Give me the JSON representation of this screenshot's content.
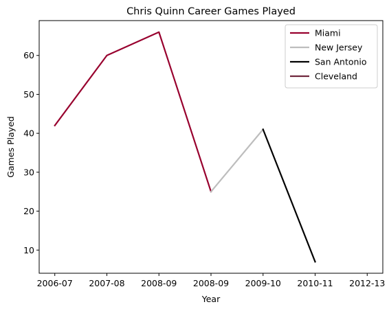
{
  "chart_data": {
    "type": "line",
    "title": "Chris Quinn Career Games Played",
    "xlabel": "Year",
    "ylabel": "Games Played",
    "categories": [
      "2006-07",
      "2007-08",
      "2008-09",
      "2008-09",
      "2009-10",
      "2010-11",
      "2012-13"
    ],
    "ylim": [
      4.05,
      68.95
    ],
    "yticks": [
      10,
      20,
      30,
      40,
      50,
      60
    ],
    "grid": false,
    "legend_position": "top-right",
    "series": [
      {
        "name": "Miami",
        "color": "#98002e",
        "points": [
          [
            0,
            42
          ],
          [
            1,
            60
          ],
          [
            2,
            66
          ],
          [
            3,
            25
          ]
        ]
      },
      {
        "name": "New Jersey",
        "color": "#bdbdbd",
        "points": [
          [
            3,
            25
          ],
          [
            4,
            41
          ]
        ]
      },
      {
        "name": "San Antonio",
        "color": "#000000",
        "points": [
          [
            4,
            41
          ],
          [
            5,
            7
          ]
        ]
      },
      {
        "name": "Cleveland",
        "color": "#6f263d",
        "points": []
      }
    ],
    "data_note_x_positions": [
      0,
      1,
      2,
      3,
      4,
      5,
      6
    ]
  }
}
